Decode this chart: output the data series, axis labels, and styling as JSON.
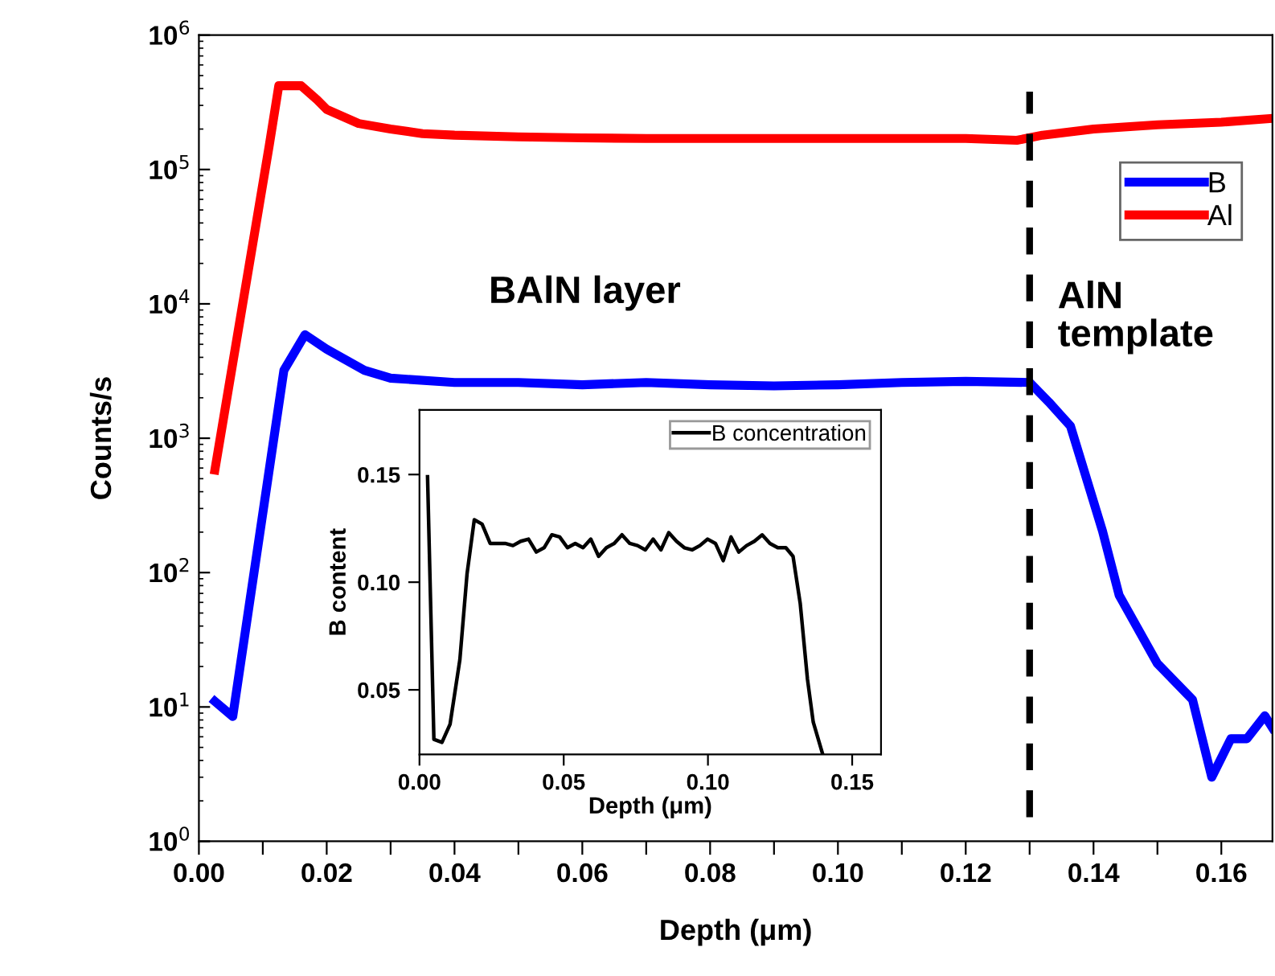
{
  "chart_data": [
    {
      "type": "line",
      "xlabel": "Depth (μm)",
      "ylabel": "Counts/s",
      "log": "y",
      "xlim": [
        0.0,
        0.168
      ],
      "ylim": [
        1,
        1000000
      ],
      "xticks": [
        {
          "value": 0.0,
          "label": "0.00"
        },
        {
          "value": 0.01,
          "label": null
        },
        {
          "value": 0.02,
          "label": "0.02"
        },
        {
          "value": 0.03,
          "label": null
        },
        {
          "value": 0.04,
          "label": "0.04"
        },
        {
          "value": 0.05,
          "label": null
        },
        {
          "value": 0.06,
          "label": "0.06"
        },
        {
          "value": 0.07,
          "label": null
        },
        {
          "value": 0.08,
          "label": "0.08"
        },
        {
          "value": 0.09,
          "label": null
        },
        {
          "value": 0.1,
          "label": "0.10"
        },
        {
          "value": 0.11,
          "label": null
        },
        {
          "value": 0.12,
          "label": "0.12"
        },
        {
          "value": 0.13,
          "label": null
        },
        {
          "value": 0.14,
          "label": "0.14"
        },
        {
          "value": 0.15,
          "label": null
        },
        {
          "value": 0.16,
          "label": "0.16"
        }
      ],
      "yticks": [
        {
          "value": 1,
          "label": "10$^{0}$"
        },
        {
          "value": 10,
          "label": "10$^{1}$"
        },
        {
          "value": 100,
          "label": "10$^{2}$"
        },
        {
          "value": 1000,
          "label": "10$^{3}$"
        },
        {
          "value": 10000,
          "label": "10$^{4}$"
        },
        {
          "value": 100000,
          "label": "10$^{5}$"
        },
        {
          "value": 1000000,
          "label": "10$^{6}$"
        }
      ],
      "legend": "top right",
      "grid": false,
      "marker": "none",
      "line_style": "solid",
      "series": [
        {
          "name": "B",
          "color": "#0000ff",
          "x": [
            0.0025,
            0.0053,
            0.0108,
            0.0133,
            0.0166,
            0.02,
            0.0259,
            0.03,
            0.04,
            0.05,
            0.06,
            0.07,
            0.08,
            0.09,
            0.1,
            0.11,
            0.12,
            0.13,
            0.133,
            0.1364,
            0.1414,
            0.144,
            0.15,
            0.1555,
            0.1585,
            0.1615,
            0.164,
            0.1668,
            0.168
          ],
          "values": [
            11,
            8.5,
            500,
            3200,
            5900,
            4600,
            3200,
            2800,
            2600,
            2600,
            2500,
            2600,
            2500,
            2450,
            2500,
            2600,
            2650,
            2600,
            1860,
            1230,
            204,
            68,
            21,
            11.3,
            3.0,
            5.8,
            5.8,
            8.6,
            7
          ]
        },
        {
          "name": "Al",
          "color": "#ff0000",
          "x": [
            0.0025,
            0.011,
            0.0125,
            0.016,
            0.0185,
            0.02,
            0.025,
            0.03,
            0.035,
            0.04,
            0.05,
            0.06,
            0.07,
            0.08,
            0.09,
            0.1,
            0.11,
            0.12,
            0.128,
            0.132,
            0.14,
            0.15,
            0.16,
            0.168
          ],
          "values": [
            580,
            150000,
            420000,
            420000,
            330000,
            280000,
            220000,
            200000,
            185000,
            180000,
            175000,
            172000,
            170000,
            170000,
            170000,
            170000,
            170000,
            170000,
            165000,
            180000,
            200000,
            215000,
            225000,
            240000
          ]
        }
      ],
      "ref_lines": [
        {
          "axis": "x",
          "value": 0.13,
          "color": "#000000",
          "line_style": "dashed"
        }
      ],
      "annotations": [
        "BAlN layer",
        "AlN\ntemplate"
      ]
    },
    {
      "type": "line",
      "xlabel": "Depth (μm)",
      "ylabel": "B content",
      "xlim": [
        0.0,
        0.16
      ],
      "ylim": [
        0.02,
        0.18
      ],
      "xticks": [
        {
          "value": 0.0,
          "label": "0.00"
        },
        {
          "value": 0.05,
          "label": "0.05"
        },
        {
          "value": 0.1,
          "label": "0.10"
        },
        {
          "value": 0.15,
          "label": "0.15"
        }
      ],
      "yticks": [
        {
          "value": 0.05,
          "label": "0.05"
        },
        {
          "value": 0.1,
          "label": "0.10"
        },
        {
          "value": 0.15,
          "label": "0.15"
        }
      ],
      "legend": "top right",
      "grid": false,
      "marker": "none",
      "line_style": "solid",
      "series": [
        {
          "name": "B concentration",
          "color": "#000000",
          "x": [
            0.0028,
            0.005,
            0.0078,
            0.0106,
            0.014,
            0.0165,
            0.019,
            0.0217,
            0.0245,
            0.027,
            0.0297,
            0.0324,
            0.0351,
            0.0378,
            0.0405,
            0.0432,
            0.0459,
            0.0486,
            0.0513,
            0.054,
            0.0567,
            0.0594,
            0.0621,
            0.0648,
            0.0675,
            0.0702,
            0.0729,
            0.0756,
            0.0783,
            0.081,
            0.0837,
            0.0864,
            0.0891,
            0.0918,
            0.0945,
            0.0972,
            0.0999,
            0.1026,
            0.1053,
            0.108,
            0.1107,
            0.1134,
            0.1161,
            0.1188,
            0.1215,
            0.1242,
            0.127,
            0.1295,
            0.132,
            0.1345,
            0.1365,
            0.1398
          ],
          "values": [
            0.149,
            0.027,
            0.0256,
            0.034,
            0.064,
            0.104,
            0.129,
            0.127,
            0.118,
            0.118,
            0.118,
            0.117,
            0.119,
            0.12,
            0.114,
            0.116,
            0.122,
            0.121,
            0.116,
            0.118,
            0.116,
            0.12,
            0.112,
            0.116,
            0.118,
            0.122,
            0.118,
            0.117,
            0.115,
            0.12,
            0.115,
            0.123,
            0.119,
            0.116,
            0.115,
            0.117,
            0.12,
            0.118,
            0.11,
            0.121,
            0.114,
            0.117,
            0.119,
            0.122,
            0.118,
            0.116,
            0.116,
            0.112,
            0.09,
            0.055,
            0.035,
            0.02
          ]
        }
      ]
    }
  ]
}
